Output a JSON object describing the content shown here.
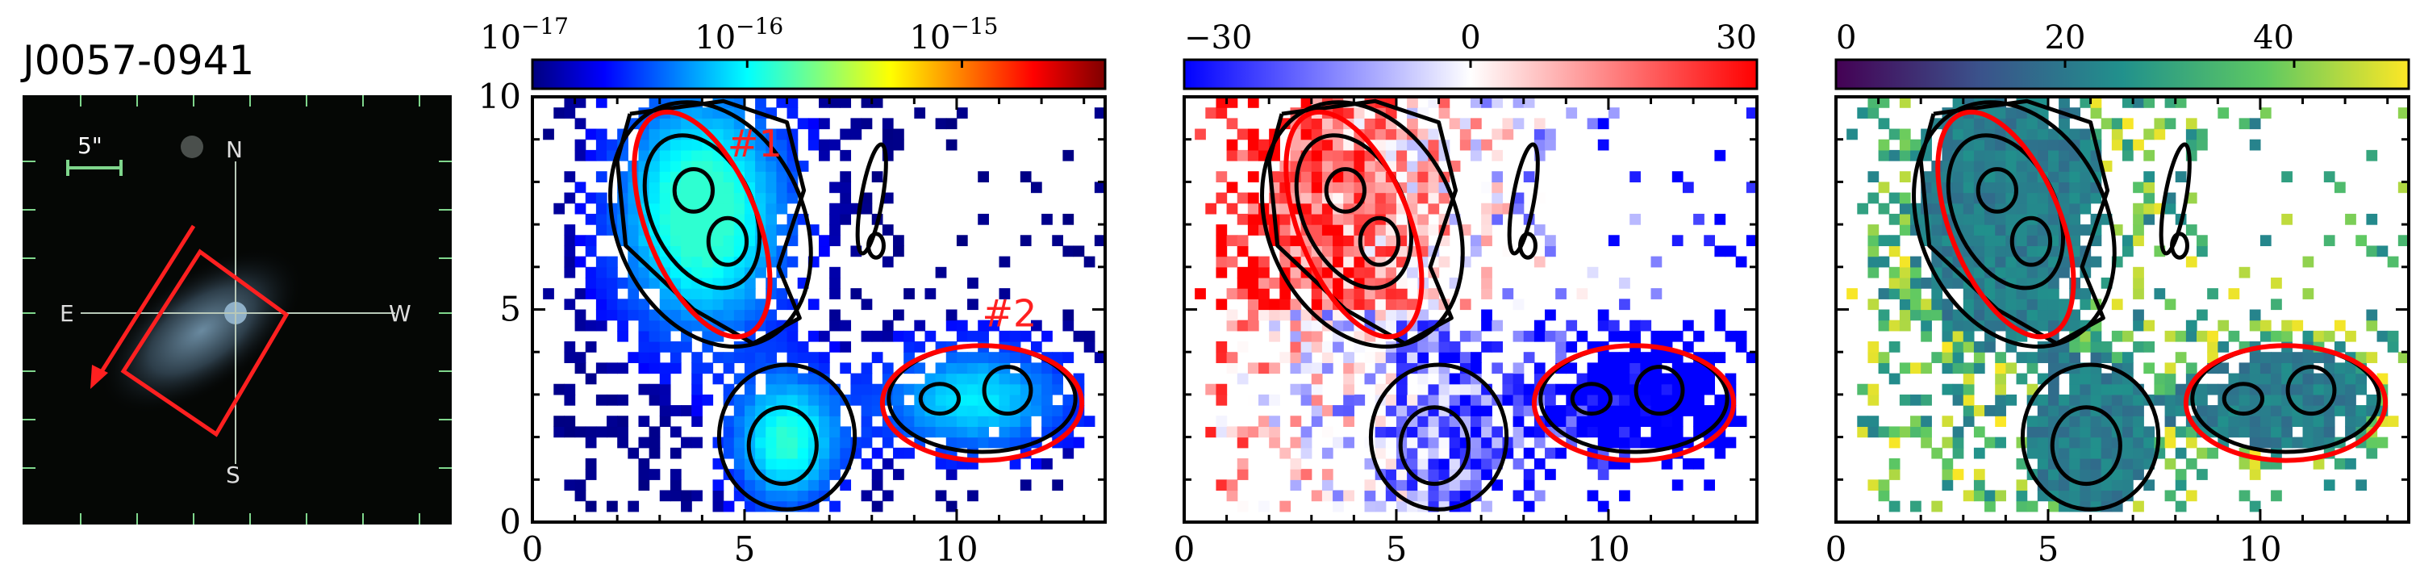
{
  "object_name": "J0057-0941",
  "image_panel": {
    "scale_label": "5\"",
    "compass": {
      "north": "N",
      "south": "S",
      "east": "E",
      "west": "W"
    }
  },
  "region_labels": [
    "#1",
    "#2"
  ],
  "colors": {
    "region_outline": "#ff0000",
    "contour": "#000000",
    "compass_lines": "#b8c8b8",
    "scale_bar": "#7fd68c"
  },
  "chart_data": [
    {
      "type": "heatmap",
      "name": "flux",
      "colormap": "jet",
      "colorbar_scale": "log",
      "colorbar_ticks": [
        "10^-17",
        "10^-16",
        "10^-15"
      ],
      "colorbar_ticks_display": [
        {
          "base": "10",
          "exp": "−17"
        },
        {
          "base": "10",
          "exp": "−16"
        },
        {
          "base": "10",
          "exp": "−15"
        }
      ],
      "xlim": [
        0,
        13.5
      ],
      "ylim": [
        0,
        10
      ],
      "xticks": [
        0,
        5,
        10
      ],
      "yticks": [
        0,
        5,
        10
      ],
      "show_y_tick_labels": true,
      "contours": true,
      "regions": [
        "#1",
        "#2"
      ]
    },
    {
      "type": "heatmap",
      "name": "velocity",
      "colormap": "bwr",
      "colorbar_ticks": [
        "−30",
        "0",
        "30"
      ],
      "colorbar_range": [
        -30,
        30
      ],
      "xlim": [
        0,
        13.5
      ],
      "ylim": [
        0,
        10
      ],
      "xticks": [
        0,
        5,
        10
      ],
      "yticks": [
        0,
        5,
        10
      ],
      "show_y_tick_labels": false,
      "contours": true
    },
    {
      "type": "heatmap",
      "name": "dispersion",
      "colormap": "viridis",
      "colorbar_ticks": [
        "0",
        "20",
        "40"
      ],
      "colorbar_range": [
        0,
        50
      ],
      "xlim": [
        0,
        13.5
      ],
      "ylim": [
        0,
        10
      ],
      "xticks": [
        0,
        5,
        10
      ],
      "yticks": [
        0,
        5,
        10
      ],
      "show_y_tick_labels": false,
      "contours": true
    }
  ]
}
